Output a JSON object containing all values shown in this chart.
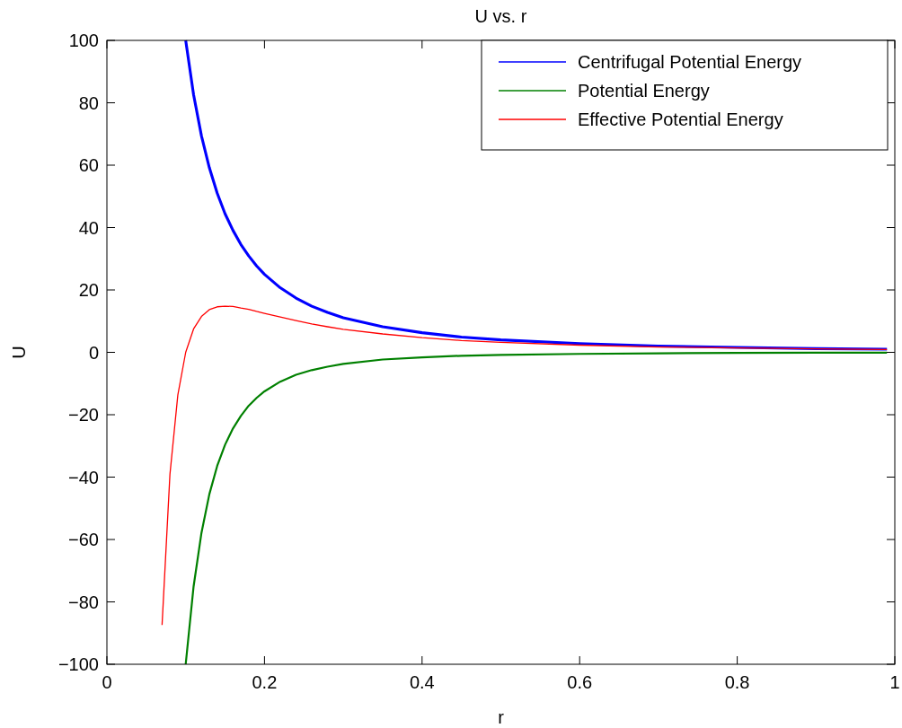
{
  "chart_data": {
    "type": "line",
    "title": "U vs. r",
    "xlabel": "r",
    "ylabel": "U",
    "xlim": [
      0,
      1
    ],
    "xticks": [
      0,
      0.2,
      0.4,
      0.6,
      0.8,
      1
    ],
    "ylim": [
      -100,
      100
    ],
    "yticks": [
      -100,
      -80,
      -60,
      -40,
      -20,
      0,
      20,
      40,
      60,
      80,
      100
    ],
    "grid": false,
    "legend": "top right",
    "line_style": "solid",
    "marker": "none",
    "series": [
      {
        "name": "Centrifugal Potential Energy",
        "color": "#0000ff",
        "x": [
          0.1,
          0.11,
          0.12,
          0.13,
          0.14,
          0.15,
          0.16,
          0.17,
          0.18,
          0.19,
          0.2,
          0.22,
          0.24,
          0.26,
          0.28,
          0.3,
          0.35,
          0.4,
          0.45,
          0.5,
          0.6,
          0.7,
          0.8,
          0.9,
          0.99
        ],
        "values": [
          100,
          82.6,
          69.4,
          59.2,
          51.0,
          44.4,
          39.1,
          34.6,
          30.9,
          27.7,
          25.0,
          20.7,
          17.4,
          14.8,
          12.8,
          11.1,
          8.2,
          6.3,
          4.9,
          4.0,
          2.8,
          2.0,
          1.6,
          1.2,
          1.0
        ]
      },
      {
        "name": "Potential Energy",
        "color": "#008000",
        "x": [
          0.1,
          0.11,
          0.12,
          0.13,
          0.14,
          0.15,
          0.16,
          0.17,
          0.18,
          0.19,
          0.2,
          0.22,
          0.24,
          0.26,
          0.28,
          0.3,
          0.35,
          0.4,
          0.45,
          0.5,
          0.6,
          0.7,
          0.8,
          0.9,
          0.99
        ],
        "values": [
          -100,
          -75.1,
          -57.9,
          -45.5,
          -36.4,
          -29.6,
          -24.4,
          -20.4,
          -17.1,
          -14.6,
          -12.5,
          -9.4,
          -7.2,
          -5.7,
          -4.6,
          -3.7,
          -2.3,
          -1.6,
          -1.1,
          -0.8,
          -0.5,
          -0.3,
          -0.2,
          -0.1,
          -0.1
        ]
      },
      {
        "name": "Effective Potential Energy",
        "color": "#ff0000",
        "x": [
          0.07,
          0.08,
          0.09,
          0.1,
          0.11,
          0.12,
          0.13,
          0.14,
          0.15,
          0.16,
          0.17,
          0.18,
          0.19,
          0.2,
          0.22,
          0.24,
          0.26,
          0.28,
          0.3,
          0.35,
          0.4,
          0.45,
          0.5,
          0.6,
          0.7,
          0.8,
          0.9,
          0.99
        ],
        "values": [
          -87.4,
          -39.1,
          -13.7,
          0,
          7.5,
          11.5,
          13.7,
          14.6,
          14.8,
          14.7,
          14.2,
          13.8,
          13.1,
          12.5,
          11.3,
          10.2,
          9.1,
          8.2,
          7.4,
          5.9,
          4.7,
          3.8,
          3.2,
          2.3,
          1.7,
          1.4,
          1.1,
          0.9
        ]
      }
    ]
  }
}
